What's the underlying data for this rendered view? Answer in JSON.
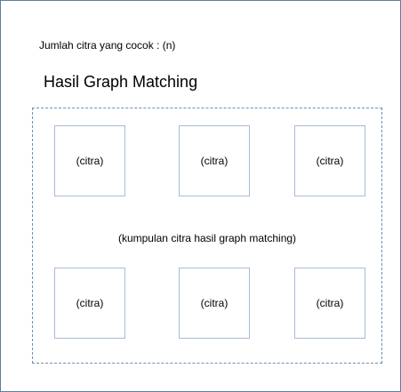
{
  "header": {
    "match_count_text": "Jumlah citra yang cocok : (n)",
    "title": "Hasil Graph Matching"
  },
  "results": {
    "caption": "(kumpulan citra hasil graph matching)",
    "images": [
      {
        "label": "(citra)"
      },
      {
        "label": "(citra)"
      },
      {
        "label": "(citra)"
      },
      {
        "label": "(citra)"
      },
      {
        "label": "(citra)"
      },
      {
        "label": "(citra)"
      }
    ]
  },
  "colors": {
    "frame_border": "#5b7fa3",
    "dashed_border": "#6b8fb8",
    "thumb_border": "#a9bccf"
  }
}
